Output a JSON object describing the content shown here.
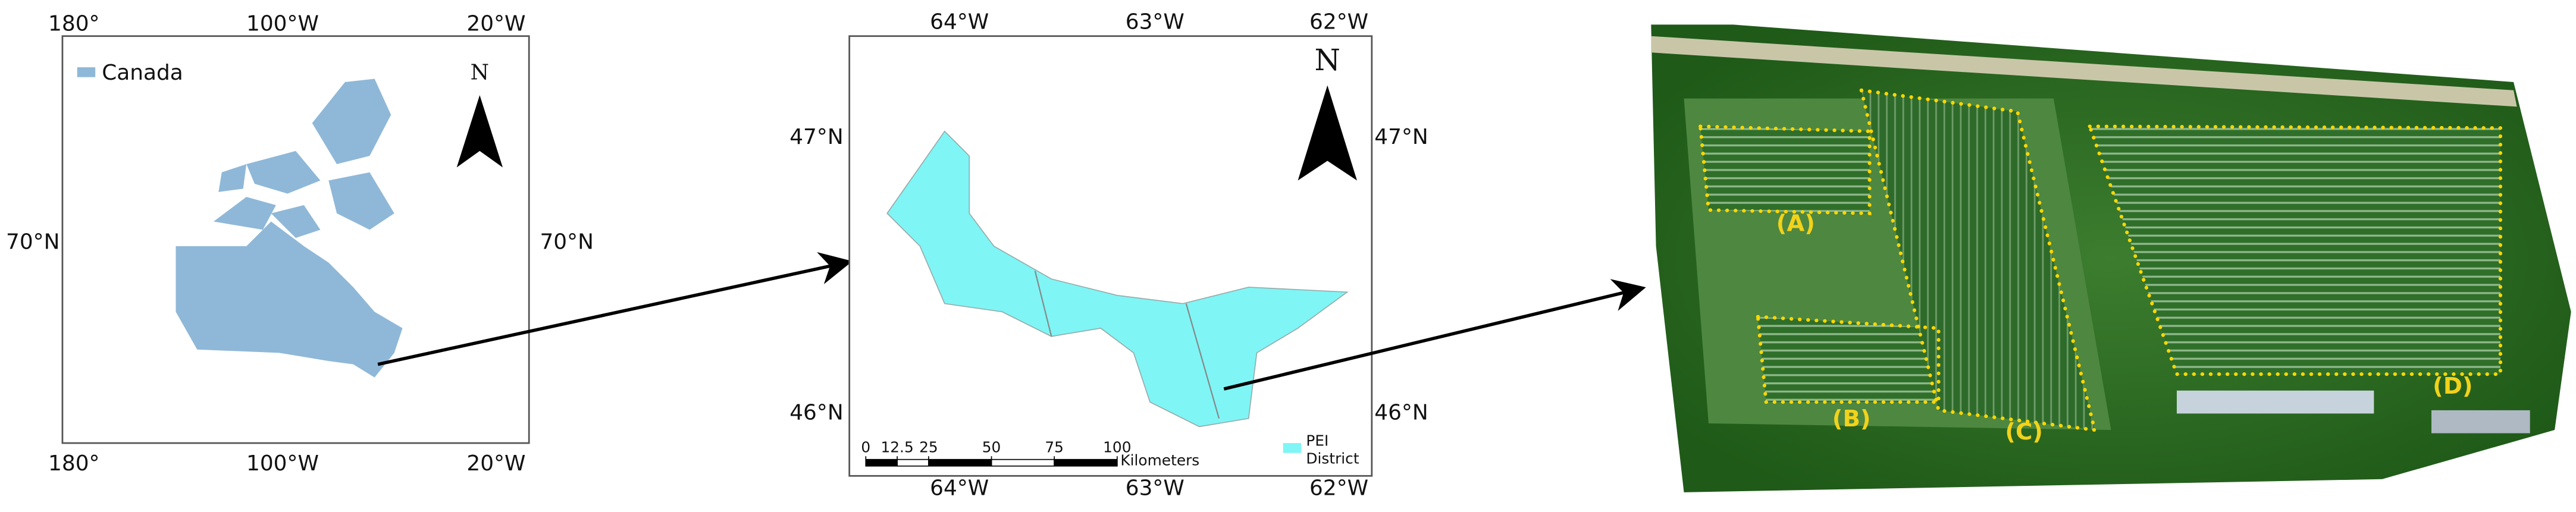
{
  "canada_map": {
    "legend": "Canada",
    "north": "N",
    "top_labels": [
      "180°",
      "100°W",
      "20°W"
    ],
    "bottom_labels": [
      "180°",
      "100°W",
      "20°W"
    ],
    "left_label": "70°N",
    "right_label": "70°N"
  },
  "pei_map": {
    "north": "N",
    "top_labels": [
      "64°W",
      "63°W",
      "62°W"
    ],
    "bottom_labels": [
      "64°W",
      "63°W",
      "62°W"
    ],
    "left_labels": [
      "47°N",
      "46°N"
    ],
    "right_labels": [
      "47°N",
      "46°N"
    ],
    "scale": {
      "ticks": [
        0,
        12.5,
        25,
        50,
        75,
        100
      ],
      "unit": "Kilometers"
    },
    "legend": [
      "PEI",
      "District"
    ]
  },
  "aerial": {
    "labels": [
      "(A)",
      "(B)",
      "(C)",
      "(D)"
    ]
  }
}
